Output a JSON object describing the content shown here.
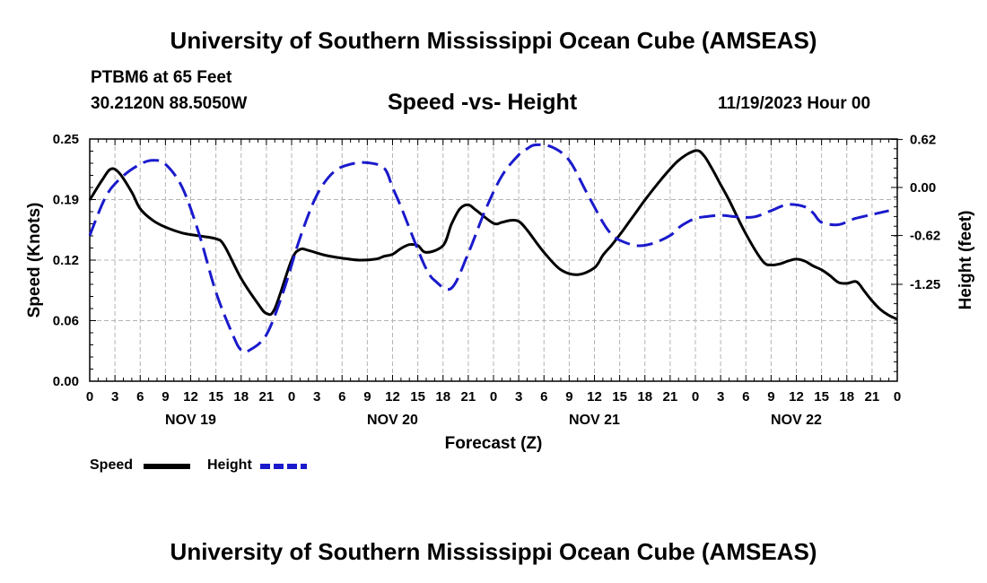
{
  "header": {
    "title": "University of Southern Mississippi Ocean Cube (AMSEAS)",
    "station": "PTBM6 at 65 Feet",
    "coords": "30.2120N  88.5050W",
    "subtitle": "Speed -vs- Height",
    "datetime": "11/19/2023 Hour 00",
    "footer_title": "University of Southern Mississippi Ocean Cube (AMSEAS)"
  },
  "legend": {
    "speed_label": "Speed",
    "height_label": "Height"
  },
  "colors": {
    "speed": "#000000",
    "height": "#1a1acc",
    "grid": "#b4b4b4"
  },
  "chart_data": {
    "type": "line",
    "title": "Speed -vs- Height",
    "xlabel": "Forecast (Z)",
    "ylabel": "Speed (Knots)",
    "y2label": "Height (feet)",
    "x_range": [
      0,
      96
    ],
    "x_unit": "hours from 11/19/2023 00Z",
    "x_tick_labels": [
      "0",
      "3",
      "6",
      "9",
      "12",
      "15",
      "18",
      "21",
      "0",
      "3",
      "6",
      "9",
      "12",
      "15",
      "18",
      "21",
      "0",
      "3",
      "6",
      "9",
      "12",
      "15",
      "18",
      "21",
      "0",
      "3",
      "6",
      "9",
      "12",
      "15",
      "18",
      "21",
      "0"
    ],
    "day_labels": [
      {
        "label": "NOV 19",
        "hour": 12
      },
      {
        "label": "NOV 20",
        "hour": 36
      },
      {
        "label": "NOV 21",
        "hour": 60
      },
      {
        "label": "NOV 22",
        "hour": 84
      }
    ],
    "ylim": [
      0,
      0.25
    ],
    "y_ticks": [
      "0.00",
      "0.06",
      "0.12",
      "0.19",
      "0.25"
    ],
    "y2lim": [
      -2.5,
      0.625
    ],
    "y2_ticks": [
      "-1.25",
      "-0.62",
      "0.00",
      "0.62"
    ],
    "grid": true,
    "series": [
      {
        "name": "Speed",
        "axis": "left",
        "style": "solid",
        "x": [
          0,
          1.5,
          2.5,
          3.5,
          5,
          6,
          7.5,
          9,
          11,
          13,
          15,
          16,
          18,
          20,
          21,
          22,
          24,
          25,
          26,
          28,
          30,
          32,
          34,
          35,
          36,
          37,
          38,
          39,
          40,
          42,
          43,
          44,
          45,
          46,
          48,
          49,
          50,
          51,
          52,
          54,
          56,
          58,
          60,
          61,
          62,
          63,
          64,
          65,
          66,
          68,
          70,
          72,
          73,
          74,
          75,
          76,
          78,
          80,
          81,
          82,
          83,
          84,
          85,
          86,
          87,
          88,
          89,
          90,
          91,
          91.5,
          92,
          93,
          94,
          95,
          96
        ],
        "values": [
          0.187,
          0.208,
          0.219,
          0.215,
          0.195,
          0.178,
          0.166,
          0.159,
          0.153,
          0.15,
          0.147,
          0.14,
          0.106,
          0.08,
          0.07,
          0.075,
          0.125,
          0.136,
          0.135,
          0.13,
          0.127,
          0.125,
          0.126,
          0.129,
          0.131,
          0.137,
          0.141,
          0.14,
          0.133,
          0.14,
          0.162,
          0.178,
          0.182,
          0.176,
          0.163,
          0.164,
          0.166,
          0.165,
          0.156,
          0.133,
          0.115,
          0.11,
          0.117,
          0.13,
          0.14,
          0.151,
          0.163,
          0.175,
          0.187,
          0.209,
          0.228,
          0.238,
          0.233,
          0.219,
          0.203,
          0.187,
          0.152,
          0.124,
          0.12,
          0.121,
          0.124,
          0.126,
          0.124,
          0.119,
          0.115,
          0.109,
          0.102,
          0.101,
          0.103,
          0.1,
          0.094,
          0.083,
          0.074,
          0.068,
          0.064
        ]
      },
      {
        "name": "Height",
        "axis": "right",
        "style": "dashed",
        "x": [
          0,
          2,
          4,
          6,
          7.5,
          9,
          11,
          13,
          15,
          17,
          18,
          19,
          21,
          23,
          25,
          27,
          29,
          31,
          33,
          35,
          36,
          37,
          39,
          40,
          41,
          43,
          45,
          47,
          49,
          51,
          52,
          53,
          55,
          57,
          59,
          61,
          62,
          63,
          65,
          67,
          69,
          70,
          71,
          72,
          73,
          75,
          77,
          79,
          81,
          83,
          85,
          86,
          87,
          89,
          91,
          93,
          95
        ],
        "values": [
          -0.62,
          -0.1,
          0.15,
          0.3,
          0.35,
          0.3,
          0.0,
          -0.6,
          -1.35,
          -1.9,
          -2.1,
          -2.1,
          -1.9,
          -1.35,
          -0.65,
          -0.1,
          0.2,
          0.3,
          0.32,
          0.25,
          0.0,
          -0.25,
          -0.8,
          -1.05,
          -1.2,
          -1.3,
          -0.85,
          -0.3,
          0.15,
          0.42,
          0.5,
          0.55,
          0.52,
          0.35,
          -0.05,
          -0.45,
          -0.6,
          -0.68,
          -0.75,
          -0.72,
          -0.62,
          -0.52,
          -0.45,
          -0.4,
          -0.38,
          -0.36,
          -0.38,
          -0.38,
          -0.3,
          -0.22,
          -0.25,
          -0.33,
          -0.45,
          -0.48,
          -0.4,
          -0.35,
          -0.3
        ]
      }
    ]
  }
}
